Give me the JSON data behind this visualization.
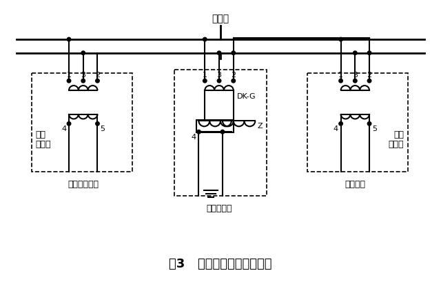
{
  "title": "图3   高阻电抗器改造示意图",
  "insulation_label": "绝缘节",
  "left_box_label1": "抵流",
  "left_box_label2": "变压器",
  "left_bottom_label": "改造区段受端",
  "middle_box_label": "高阻电抗器",
  "middle_dk_label": "DK-G",
  "middle_z_label": "Z",
  "right_box_label1": "抵流",
  "right_box_label2": "变压器",
  "right_bottom_label": "相邻区段",
  "bg_color": "#ffffff",
  "line_color": "#000000",
  "font_size_title": 13,
  "font_size_label": 9,
  "fig_width": 6.4,
  "fig_height": 4.09
}
